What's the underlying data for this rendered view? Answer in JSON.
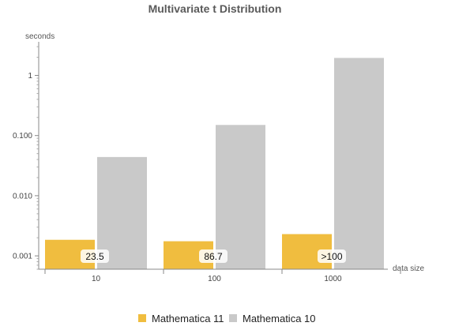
{
  "chart_data": {
    "type": "bar",
    "title": "Multivariate t Distribution",
    "ylabel": "seconds",
    "xlabel": "data size",
    "y_scale": "log",
    "ylim": [
      0.0006,
      3.2
    ],
    "y_ticks": [
      {
        "value": 0.001,
        "label": "0.001"
      },
      {
        "value": 0.01,
        "label": "0.010"
      },
      {
        "value": 0.1,
        "label": "0.100"
      },
      {
        "value": 1,
        "label": "1"
      }
    ],
    "categories": [
      "10",
      "100",
      "1000"
    ],
    "series": [
      {
        "name": "Mathematica 11",
        "color": "#f0bd3f",
        "values": [
          0.00185,
          0.00175,
          0.0023
        ]
      },
      {
        "name": "Mathematica 10",
        "color": "#c9c9c9",
        "values": [
          0.044,
          0.15,
          1.95
        ]
      }
    ],
    "data_labels": [
      "23.5",
      "86.7",
      ">100"
    ],
    "legend_position": "bottom",
    "grid": false
  }
}
